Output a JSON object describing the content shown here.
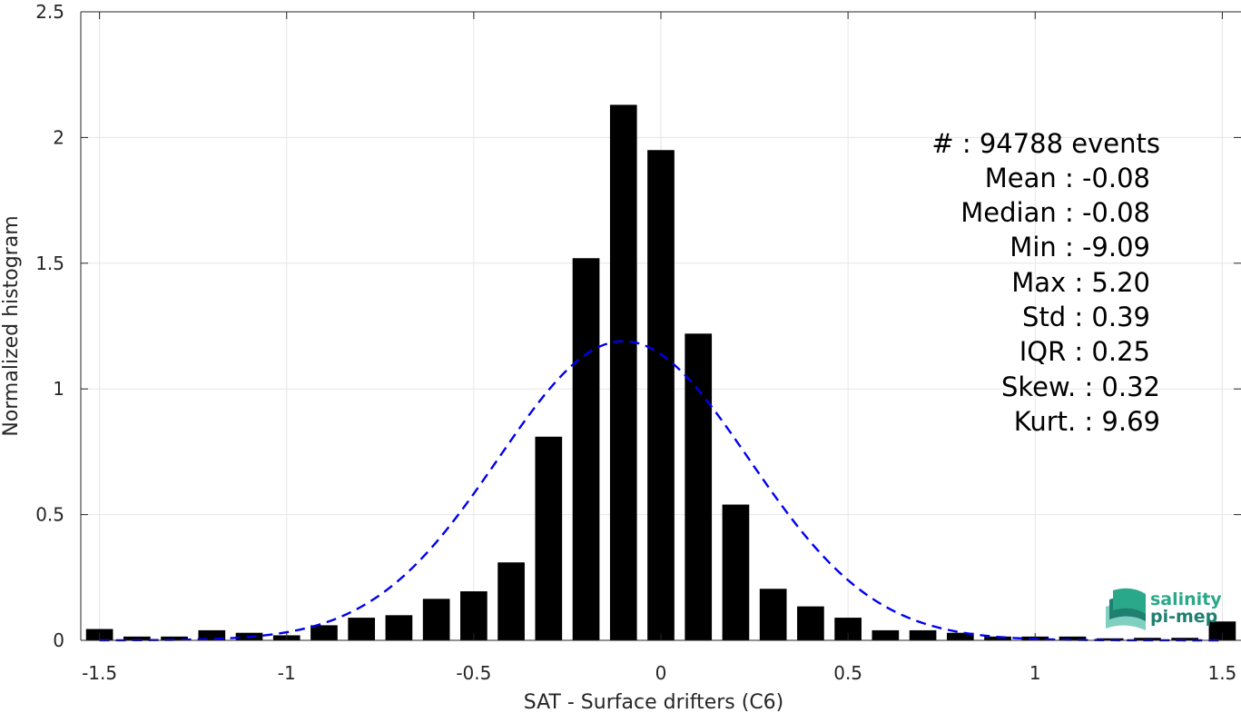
{
  "chart_data": {
    "type": "bar",
    "xlabel": "SAT - Surface drifters (C6)",
    "ylabel": "Normalized histogram",
    "xlim": [
      -1.55,
      1.55
    ],
    "ylim": [
      0,
      2.5
    ],
    "xticks": [
      -1.5,
      -1,
      -0.5,
      0,
      0.5,
      1,
      1.5
    ],
    "xtick_labels": [
      "-1.5",
      "-1",
      "-0.5",
      "0",
      "0.5",
      "1",
      "1.5"
    ],
    "yticks": [
      0,
      0.5,
      1,
      1.5,
      2,
      2.5
    ],
    "ytick_labels": [
      "0",
      "0.5",
      "1",
      "1.5",
      "2",
      "2.5"
    ],
    "grid": true,
    "bar_color": "#000000",
    "bin_width": 0.1,
    "bins": [
      {
        "x": -1.5,
        "value": 0.045
      },
      {
        "x": -1.4,
        "value": 0.015
      },
      {
        "x": -1.3,
        "value": 0.015
      },
      {
        "x": -1.2,
        "value": 0.04
      },
      {
        "x": -1.1,
        "value": 0.03
      },
      {
        "x": -1.0,
        "value": 0.02
      },
      {
        "x": -0.9,
        "value": 0.06
      },
      {
        "x": -0.8,
        "value": 0.09
      },
      {
        "x": -0.7,
        "value": 0.1
      },
      {
        "x": -0.6,
        "value": 0.165
      },
      {
        "x": -0.5,
        "value": 0.195
      },
      {
        "x": -0.4,
        "value": 0.31
      },
      {
        "x": -0.3,
        "value": 0.81
      },
      {
        "x": -0.2,
        "value": 1.52
      },
      {
        "x": -0.1,
        "value": 2.13
      },
      {
        "x": 0.0,
        "value": 1.95
      },
      {
        "x": 0.1,
        "value": 1.22
      },
      {
        "x": 0.2,
        "value": 0.54
      },
      {
        "x": 0.3,
        "value": 0.205
      },
      {
        "x": 0.4,
        "value": 0.135
      },
      {
        "x": 0.5,
        "value": 0.09
      },
      {
        "x": 0.6,
        "value": 0.04
      },
      {
        "x": 0.7,
        "value": 0.04
      },
      {
        "x": 0.8,
        "value": 0.03
      },
      {
        "x": 0.9,
        "value": 0.015
      },
      {
        "x": 1.0,
        "value": 0.015
      },
      {
        "x": 1.1,
        "value": 0.015
      },
      {
        "x": 1.2,
        "value": 0.008
      },
      {
        "x": 1.3,
        "value": 0.01
      },
      {
        "x": 1.4,
        "value": 0.01
      },
      {
        "x": 1.5,
        "value": 0.075
      }
    ],
    "fit_curve": {
      "type": "gaussian",
      "style": "dashed",
      "color": "#0000ee",
      "mean": -0.1,
      "std": 0.335,
      "peak": 1.19,
      "x_range": [
        -1.5,
        1.5
      ]
    },
    "annotations": [
      "#  : 94788 events",
      "Mean : -0.08",
      "Median : -0.08",
      "Min : -9.09",
      "Max : 5.20",
      "Std : 0.39",
      "IQR : 0.25",
      "Skew. : 0.32",
      "Kurt. : 9.69"
    ]
  },
  "logo": {
    "line1": "salinity",
    "line2": "pi-mep",
    "colors": [
      "#2aa88a",
      "#1f7f70",
      "#7fd0c0"
    ]
  }
}
